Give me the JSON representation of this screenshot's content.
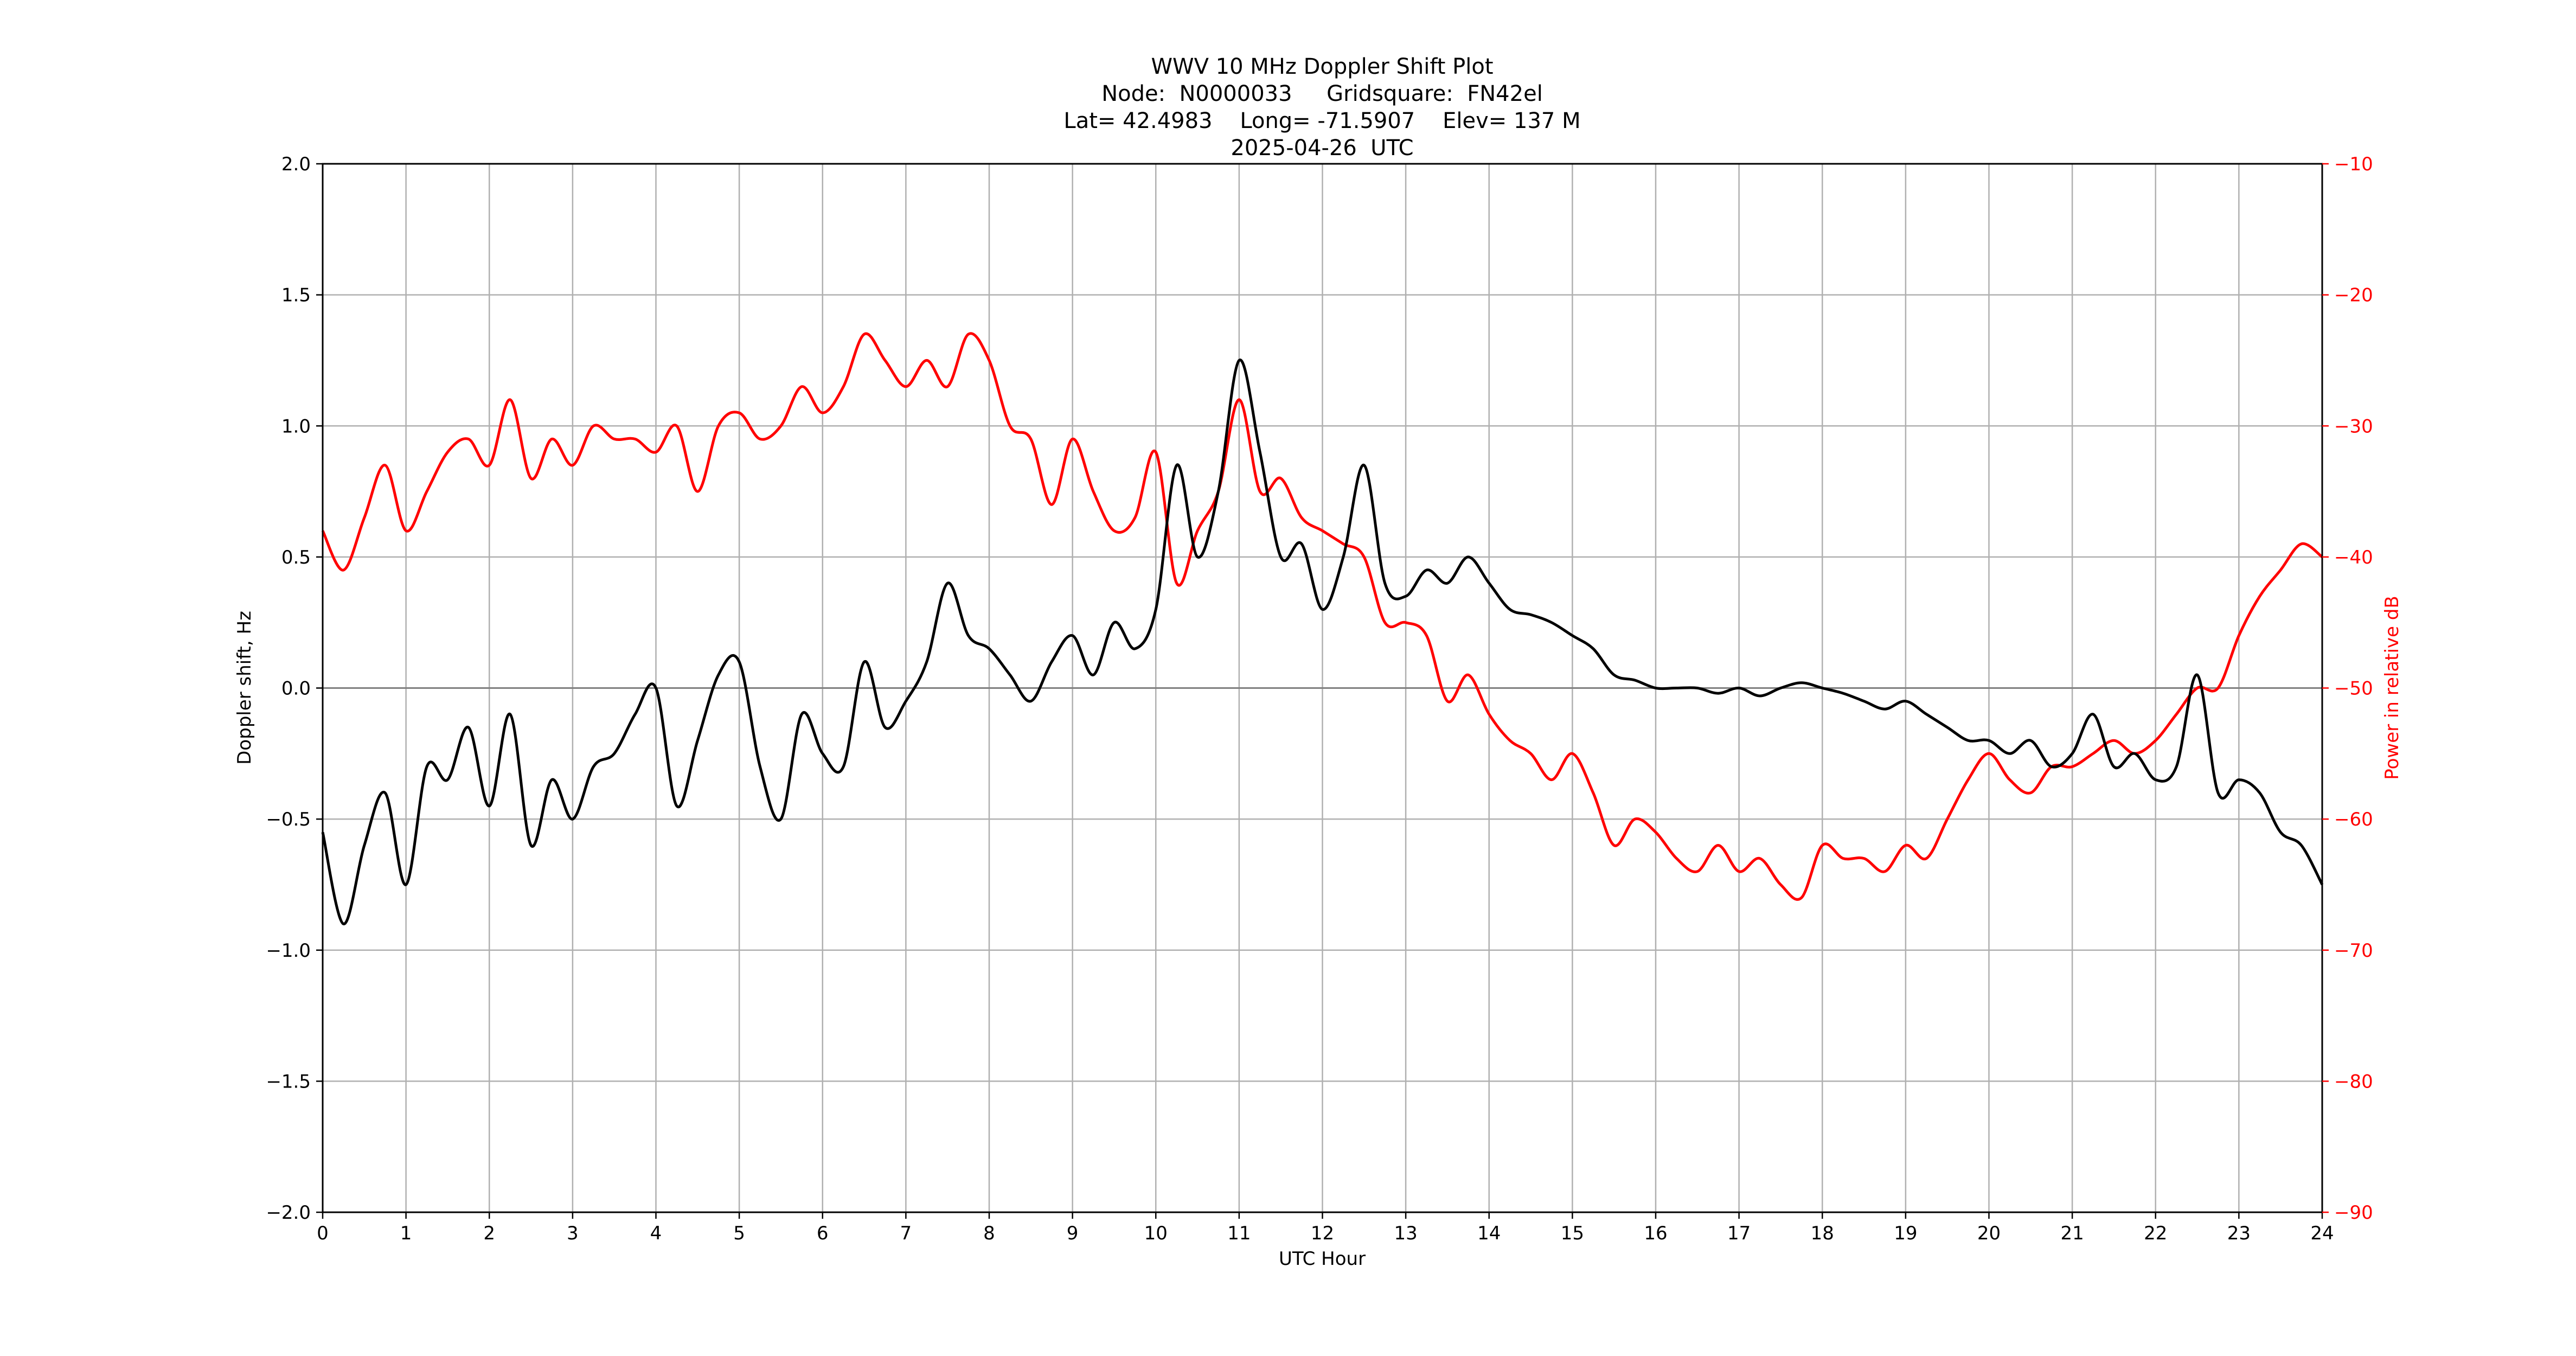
{
  "chart_data": {
    "type": "line",
    "title_lines": [
      "WWV 10 MHz Doppler Shift Plot",
      "Node:  N0000033     Gridsquare:  FN42el",
      "Lat= 42.4983    Long= -71.5907    Elev= 137 M",
      "2025-04-26  UTC"
    ],
    "xlabel": "UTC Hour",
    "ylabel_left": "Doppler shift, Hz",
    "ylabel_right": "Power in relative dB",
    "xlim": [
      0,
      24
    ],
    "ylim_left": [
      -2.0,
      2.0
    ],
    "ylim_right": [
      -90,
      -10
    ],
    "x_ticks": [
      "0",
      "1",
      "2",
      "3",
      "4",
      "5",
      "6",
      "7",
      "8",
      "9",
      "10",
      "11",
      "12",
      "13",
      "14",
      "15",
      "16",
      "17",
      "18",
      "19",
      "20",
      "21",
      "22",
      "23",
      "24"
    ],
    "y_left_ticks": [
      "2.0",
      "1.5",
      "1.0",
      "0.5",
      "0.0",
      "−0.5",
      "−1.0",
      "−1.5",
      "−2.0"
    ],
    "y_right_ticks": [
      "−10",
      "−20",
      "−30",
      "−40",
      "−50",
      "−60",
      "−70",
      "−80",
      "−90"
    ],
    "grid": true,
    "colors": {
      "doppler": "#000000",
      "power": "#ff0000",
      "grid": "#b0b0b0"
    },
    "series": [
      {
        "axis": "left",
        "x": [
          0,
          0.25,
          0.5,
          0.75,
          1,
          1.25,
          1.5,
          1.75,
          2,
          2.25,
          2.5,
          2.75,
          3,
          3.25,
          3.5,
          3.75,
          4,
          4.25,
          4.5,
          4.75,
          5,
          5.25,
          5.5,
          5.75,
          6,
          6.25,
          6.5,
          6.75,
          7,
          7.25,
          7.5,
          7.75,
          8,
          8.25,
          8.5,
          8.75,
          9,
          9.25,
          9.5,
          9.75,
          10,
          10.25,
          10.5,
          10.75,
          11,
          11.25,
          11.5,
          11.75,
          12,
          12.25,
          12.5,
          12.75,
          13,
          13.25,
          13.5,
          13.75,
          14,
          14.25,
          14.5,
          14.75,
          15,
          15.25,
          15.5,
          15.75,
          16,
          16.25,
          16.5,
          16.75,
          17,
          17.25,
          17.5,
          17.75,
          18,
          18.25,
          18.5,
          18.75,
          19,
          19.25,
          19.5,
          19.75,
          20,
          20.25,
          20.5,
          20.75,
          21,
          21.25,
          21.5,
          21.75,
          22,
          22.25,
          22.5,
          22.75,
          23,
          23.25,
          23.5,
          23.75,
          24
        ],
        "values": [
          -0.55,
          -0.9,
          -0.6,
          -0.4,
          -0.75,
          -0.3,
          -0.35,
          -0.15,
          -0.45,
          -0.1,
          -0.6,
          -0.35,
          -0.5,
          -0.3,
          -0.25,
          -0.1,
          0.0,
          -0.45,
          -0.2,
          0.05,
          0.1,
          -0.3,
          -0.5,
          -0.1,
          -0.25,
          -0.3,
          0.1,
          -0.15,
          -0.05,
          0.1,
          0.4,
          0.2,
          0.15,
          0.05,
          -0.05,
          0.1,
          0.2,
          0.05,
          0.25,
          0.15,
          0.3,
          0.85,
          0.5,
          0.75,
          1.25,
          0.9,
          0.5,
          0.55,
          0.3,
          0.5,
          0.85,
          0.4,
          0.35,
          0.45,
          0.4,
          0.5,
          0.4,
          0.3,
          0.28,
          0.25,
          0.2,
          0.15,
          0.05,
          0.03,
          0.0,
          0.0,
          0.0,
          -0.02,
          0.0,
          -0.03,
          0.0,
          0.02,
          0.0,
          -0.02,
          -0.05,
          -0.08,
          -0.05,
          -0.1,
          -0.15,
          -0.2,
          -0.2,
          -0.25,
          -0.2,
          -0.3,
          -0.25,
          -0.1,
          -0.3,
          -0.25,
          -0.35,
          -0.3,
          0.05,
          -0.4,
          -0.35,
          -0.4,
          -0.55,
          -0.6,
          -0.75
        ]
      },
      {
        "axis": "right",
        "x": [
          0,
          0.25,
          0.5,
          0.75,
          1,
          1.25,
          1.5,
          1.75,
          2,
          2.25,
          2.5,
          2.75,
          3,
          3.25,
          3.5,
          3.75,
          4,
          4.25,
          4.5,
          4.75,
          5,
          5.25,
          5.5,
          5.75,
          6,
          6.25,
          6.5,
          6.75,
          7,
          7.25,
          7.5,
          7.75,
          8,
          8.25,
          8.5,
          8.75,
          9,
          9.25,
          9.5,
          9.75,
          10,
          10.25,
          10.5,
          10.75,
          11,
          11.25,
          11.5,
          11.75,
          12,
          12.25,
          12.5,
          12.75,
          13,
          13.25,
          13.5,
          13.75,
          14,
          14.25,
          14.5,
          14.75,
          15,
          15.25,
          15.5,
          15.75,
          16,
          16.25,
          16.5,
          16.75,
          17,
          17.25,
          17.5,
          17.75,
          18,
          18.25,
          18.5,
          18.75,
          19,
          19.25,
          19.5,
          19.75,
          20,
          20.25,
          20.5,
          20.75,
          21,
          21.25,
          21.5,
          21.75,
          22,
          22.25,
          22.5,
          22.75,
          23,
          23.25,
          23.5,
          23.75,
          24
        ],
        "values": [
          -38,
          -41,
          -37,
          -33,
          -38,
          -35,
          -32,
          -31,
          -33,
          -28,
          -34,
          -31,
          -33,
          -30,
          -31,
          -31,
          -32,
          -30,
          -35,
          -30,
          -29,
          -31,
          -30,
          -27,
          -29,
          -27,
          -23,
          -25,
          -27,
          -25,
          -27,
          -23,
          -25,
          -30,
          -31,
          -36,
          -31,
          -35,
          -38,
          -37,
          -32,
          -42,
          -38,
          -35,
          -28,
          -35,
          -34,
          -37,
          -38,
          -39,
          -40,
          -45,
          -45,
          -46,
          -51,
          -49,
          -52,
          -54,
          -55,
          -57,
          -55,
          -58,
          -62,
          -60,
          -61,
          -63,
          -64,
          -62,
          -64,
          -63,
          -65,
          -66,
          -62,
          -63,
          -63,
          -64,
          -62,
          -63,
          -60,
          -57,
          -55,
          -57,
          -58,
          -56,
          -56,
          -55,
          -54,
          -55,
          -54,
          -52,
          -50,
          -50,
          -46,
          -43,
          -41,
          -39,
          -40
        ]
      }
    ]
  }
}
